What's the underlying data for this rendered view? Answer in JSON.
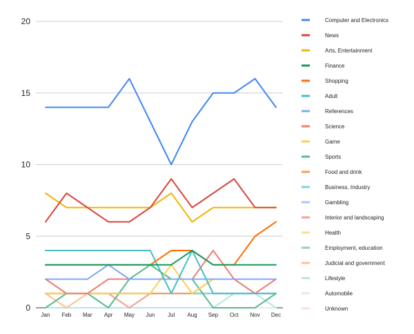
{
  "chart_data": {
    "type": "line",
    "title": "",
    "xlabel": "",
    "ylabel": "",
    "ylim": [
      0,
      20
    ],
    "yticks": [
      0,
      5,
      10,
      15,
      20
    ],
    "grid": true,
    "legend_position": "right",
    "categories": [
      "Jan",
      "Feb",
      "Mar",
      "Apr",
      "May",
      "Jun",
      "Jul",
      "Aug",
      "Sep",
      "Oct",
      "Nov",
      "Dec"
    ],
    "series": [
      {
        "name": "Computer and Electronics",
        "color": "#4285f4",
        "values": [
          14,
          14,
          14,
          14,
          16,
          13,
          10,
          13,
          15,
          15,
          16,
          14
        ]
      },
      {
        "name": "News",
        "color": "#db4437",
        "values": [
          6,
          8,
          7,
          6,
          6,
          7,
          9,
          7,
          8,
          9,
          7,
          7
        ]
      },
      {
        "name": "Arts, Entertainment",
        "color": "#f4b400",
        "values": [
          8,
          7,
          7,
          7,
          7,
          7,
          8,
          6,
          7,
          7,
          7,
          7
        ]
      },
      {
        "name": "Finance",
        "color": "#0f9d58",
        "values": [
          3,
          3,
          3,
          3,
          3,
          3,
          3,
          4,
          3,
          3,
          3,
          3
        ]
      },
      {
        "name": "Shopping",
        "color": "#ff6d01",
        "values": [
          3,
          3,
          3,
          3,
          3,
          3,
          4,
          4,
          3,
          3,
          5,
          6
        ]
      },
      {
        "name": "Adult",
        "color": "#46bdc6",
        "values": [
          4,
          4,
          4,
          4,
          4,
          4,
          1,
          4,
          1,
          1,
          1,
          1
        ]
      },
      {
        "name": "References",
        "color": "#7baaf7",
        "values": [
          2,
          2,
          2,
          3,
          2,
          2,
          2,
          2,
          2,
          2,
          2,
          2
        ]
      },
      {
        "name": "Science",
        "color": "#f07b72",
        "values": [
          2,
          1,
          1,
          2,
          2,
          2,
          2,
          2,
          4,
          2,
          1,
          2
        ]
      },
      {
        "name": "Game",
        "color": "#fcd04f",
        "values": [
          1,
          1,
          1,
          1,
          1,
          1,
          3,
          1,
          2,
          2,
          2,
          2
        ]
      },
      {
        "name": "Sports",
        "color": "#57bb8a",
        "values": [
          0,
          1,
          1,
          0,
          2,
          3,
          2,
          2,
          0,
          0,
          0,
          1
        ]
      },
      {
        "name": "Food and drink",
        "color": "#ff994d",
        "values": [
          1,
          1,
          1,
          1,
          1,
          1,
          1,
          1,
          2,
          2,
          2,
          2
        ]
      },
      {
        "name": "Business, Industry",
        "color": "#7ed1d7",
        "values": [
          1,
          1,
          1,
          1,
          1,
          1,
          1,
          1,
          1,
          1,
          1,
          1
        ]
      },
      {
        "name": "Gambling",
        "color": "#a6c8fa",
        "values": [
          1,
          1,
          1,
          1,
          1,
          1,
          1,
          1,
          1,
          1,
          1,
          1
        ]
      },
      {
        "name": "Interior and landscaping",
        "color": "#f5a19a",
        "values": [
          1,
          1,
          1,
          1,
          0,
          1,
          1,
          1,
          1,
          1,
          1,
          1
        ]
      },
      {
        "name": "Health",
        "color": "#fde08a",
        "values": [
          1,
          1,
          1,
          1,
          1,
          1,
          1,
          1,
          1,
          1,
          1,
          1
        ]
      },
      {
        "name": "Employment, education",
        "color": "#92d2b1",
        "values": [
          1,
          1,
          1,
          1,
          1,
          1,
          1,
          1,
          1,
          1,
          1,
          1
        ]
      },
      {
        "name": "Judicial and government",
        "color": "#ffc08f",
        "values": [
          1,
          0,
          1,
          1,
          0,
          1,
          1,
          1,
          1,
          1,
          1,
          1
        ]
      },
      {
        "name": "Lifestyle",
        "color": "#b5e4e7",
        "values": [
          0,
          0,
          0,
          0,
          0,
          0,
          0,
          0,
          0,
          1,
          1,
          0
        ]
      },
      {
        "name": "Automobile",
        "color": "#e8e8f2",
        "values": [
          0,
          0,
          0,
          0,
          0,
          0,
          0,
          0,
          0,
          0,
          0,
          0
        ]
      },
      {
        "name": "Unknown",
        "color": "#fbdfdf",
        "values": [
          0,
          0,
          0,
          0,
          0,
          0,
          0,
          0,
          0,
          0,
          0,
          0
        ]
      }
    ]
  }
}
